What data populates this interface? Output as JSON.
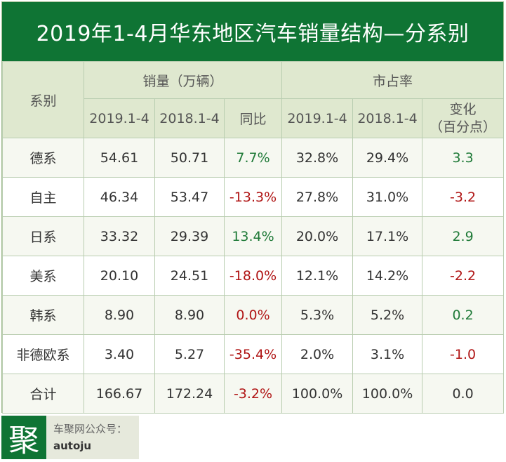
{
  "title": "2019年1-4月华东地区汽车销量结构—分系别",
  "header": {
    "series_col": "系别",
    "sales_group": "销量（万辆）",
    "share_group": "市占率",
    "sales_cols": [
      "2019.1-4",
      "2018.1-4",
      "同比"
    ],
    "share_cols": [
      "2019.1-4",
      "2018.1-4"
    ],
    "change_line1": "变化",
    "change_line2": "（百分点）"
  },
  "rows": [
    {
      "name": "德系",
      "s2019": "54.61",
      "s2018": "50.71",
      "yoy": "7.7%",
      "m2019": "32.8%",
      "m2018": "29.4%",
      "chg": "3.3"
    },
    {
      "name": "自主",
      "s2019": "46.34",
      "s2018": "53.47",
      "yoy": "-13.3%",
      "m2019": "27.8%",
      "m2018": "31.0%",
      "chg": "-3.2"
    },
    {
      "name": "日系",
      "s2019": "33.32",
      "s2018": "29.39",
      "yoy": "13.4%",
      "m2019": "20.0%",
      "m2018": "17.1%",
      "chg": "2.9"
    },
    {
      "name": "美系",
      "s2019": "20.10",
      "s2018": "24.51",
      "yoy": "-18.0%",
      "m2019": "12.1%",
      "m2018": "14.2%",
      "chg": "-2.2"
    },
    {
      "name": "韩系",
      "s2019": "8.90",
      "s2018": "8.90",
      "yoy": "0.0%",
      "m2019": "5.3%",
      "m2018": "5.2%",
      "chg": "0.2"
    },
    {
      "name": "非德欧系",
      "s2019": "3.40",
      "s2018": "5.27",
      "yoy": "-35.4%",
      "m2019": "2.0%",
      "m2018": "3.1%",
      "chg": "-1.0"
    },
    {
      "name": "合计",
      "s2019": "166.67",
      "s2018": "172.24",
      "yoy": "-3.2%",
      "m2019": "100.0%",
      "m2018": "100.0%",
      "chg": "0.0"
    }
  ],
  "footer": {
    "logo_char": "聚",
    "label": "车聚网公众号：",
    "account": "autoju"
  },
  "colors": {
    "title_bg": "#0f7434",
    "header_bg": "#dfe8cf",
    "positive": "#1f7a38",
    "negative": "#b01515"
  }
}
